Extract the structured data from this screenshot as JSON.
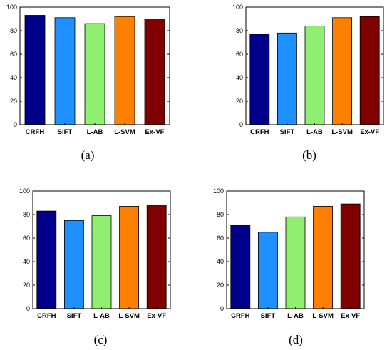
{
  "chart_data": [
    {
      "type": "bar",
      "caption": "(a)",
      "categories": [
        "CRFH",
        "SIFT",
        "L-AB",
        "L-SVM",
        "Ex-VF"
      ],
      "values": [
        93,
        91,
        86,
        92,
        90
      ],
      "ylim": [
        0,
        100
      ],
      "yticks": [
        "0",
        "20",
        "40",
        "60",
        "80",
        "100"
      ],
      "grid": false,
      "bar_colors": [
        "#00008b",
        "#1e90ff",
        "#90ee70",
        "#ff8000",
        "#800000"
      ]
    },
    {
      "type": "bar",
      "caption": "(b)",
      "categories": [
        "CRFH",
        "SIFT",
        "L-AB",
        "L-SVM",
        "Ex-VF"
      ],
      "values": [
        77,
        78,
        84,
        91,
        92
      ],
      "ylim": [
        0,
        100
      ],
      "yticks": [
        "0",
        "20",
        "40",
        "60",
        "80",
        "100"
      ],
      "grid": false,
      "bar_colors": [
        "#00008b",
        "#1e90ff",
        "#90ee70",
        "#ff8000",
        "#800000"
      ]
    },
    {
      "type": "bar",
      "caption": "(c)",
      "categories": [
        "CRFH",
        "SIFT",
        "L-AB",
        "L-SVM",
        "Ex-VF"
      ],
      "values": [
        83,
        75,
        79,
        87,
        88
      ],
      "ylim": [
        0,
        100
      ],
      "yticks": [
        "0",
        "20",
        "40",
        "60",
        "80",
        "100"
      ],
      "grid": false,
      "bar_colors": [
        "#00008b",
        "#1e90ff",
        "#90ee70",
        "#ff8000",
        "#800000"
      ]
    },
    {
      "type": "bar",
      "caption": "(d)",
      "categories": [
        "CRFH",
        "SIFT",
        "L-AB",
        "L-SVM",
        "Ex-VF"
      ],
      "values": [
        71,
        65,
        78,
        87,
        89
      ],
      "ylim": [
        0,
        100
      ],
      "yticks": [
        "0",
        "20",
        "40",
        "60",
        "80",
        "100"
      ],
      "grid": false,
      "bar_colors": [
        "#00008b",
        "#1e90ff",
        "#90ee70",
        "#ff8000",
        "#800000"
      ]
    }
  ]
}
